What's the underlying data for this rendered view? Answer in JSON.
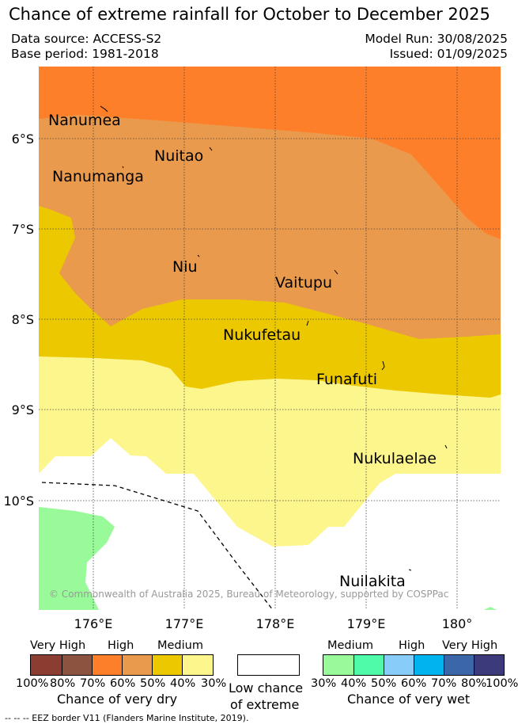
{
  "title": "Chance of extreme rainfall for October to December 2025",
  "meta": {
    "data_source": "Data source: ACCESS-S2",
    "base_period": "Base period: 1981-2018",
    "model_run": "Model Run: 30/08/2025",
    "issued": "Issued: 01/09/2025"
  },
  "map": {
    "lat_labels": [
      "6°S",
      "7°S",
      "8°S",
      "9°S",
      "10°S"
    ],
    "lon_labels": [
      "176°E",
      "177°E",
      "178°E",
      "179°E",
      "180°"
    ],
    "places": [
      "Nanumea",
      "Nuitao",
      "Nanumanga",
      "Niu",
      "Vaitupu",
      "Nukufetau",
      "Funafuti",
      "Nukulaelae",
      "Nuilakita"
    ],
    "copyright": "© Commonwealth of Australia 2025, Bureau of Meteorology, supported by COSPPac"
  },
  "legend": {
    "dry": {
      "headers": [
        "Very High",
        "High",
        "Medium"
      ],
      "colors": [
        "#8c3d32",
        "#8c5440",
        "#fe7f2a",
        "#ea9a4c",
        "#ecc800",
        "#fdf68c"
      ],
      "ticks": [
        "100%",
        "80%",
        "70%",
        "60%",
        "50%",
        "40%",
        "30%"
      ],
      "caption": "Chance of very dry"
    },
    "low": {
      "color": "#ffffff",
      "caption_line1": "Low chance",
      "caption_line2": "of extreme"
    },
    "wet": {
      "headers": [
        "Medium",
        "High",
        "Very High"
      ],
      "colors": [
        "#98fa98",
        "#4ffaa9",
        "#88cdfa",
        "#00b4ef",
        "#3b66a8",
        "#3c3a7a"
      ],
      "ticks": [
        "30%",
        "40%",
        "50%",
        "60%",
        "70%",
        "80%",
        "100%"
      ],
      "caption": "Chance of very wet"
    },
    "eez_note": "--  --  -- EEZ border V11 (Flanders Marine Institute, 2019)."
  }
}
